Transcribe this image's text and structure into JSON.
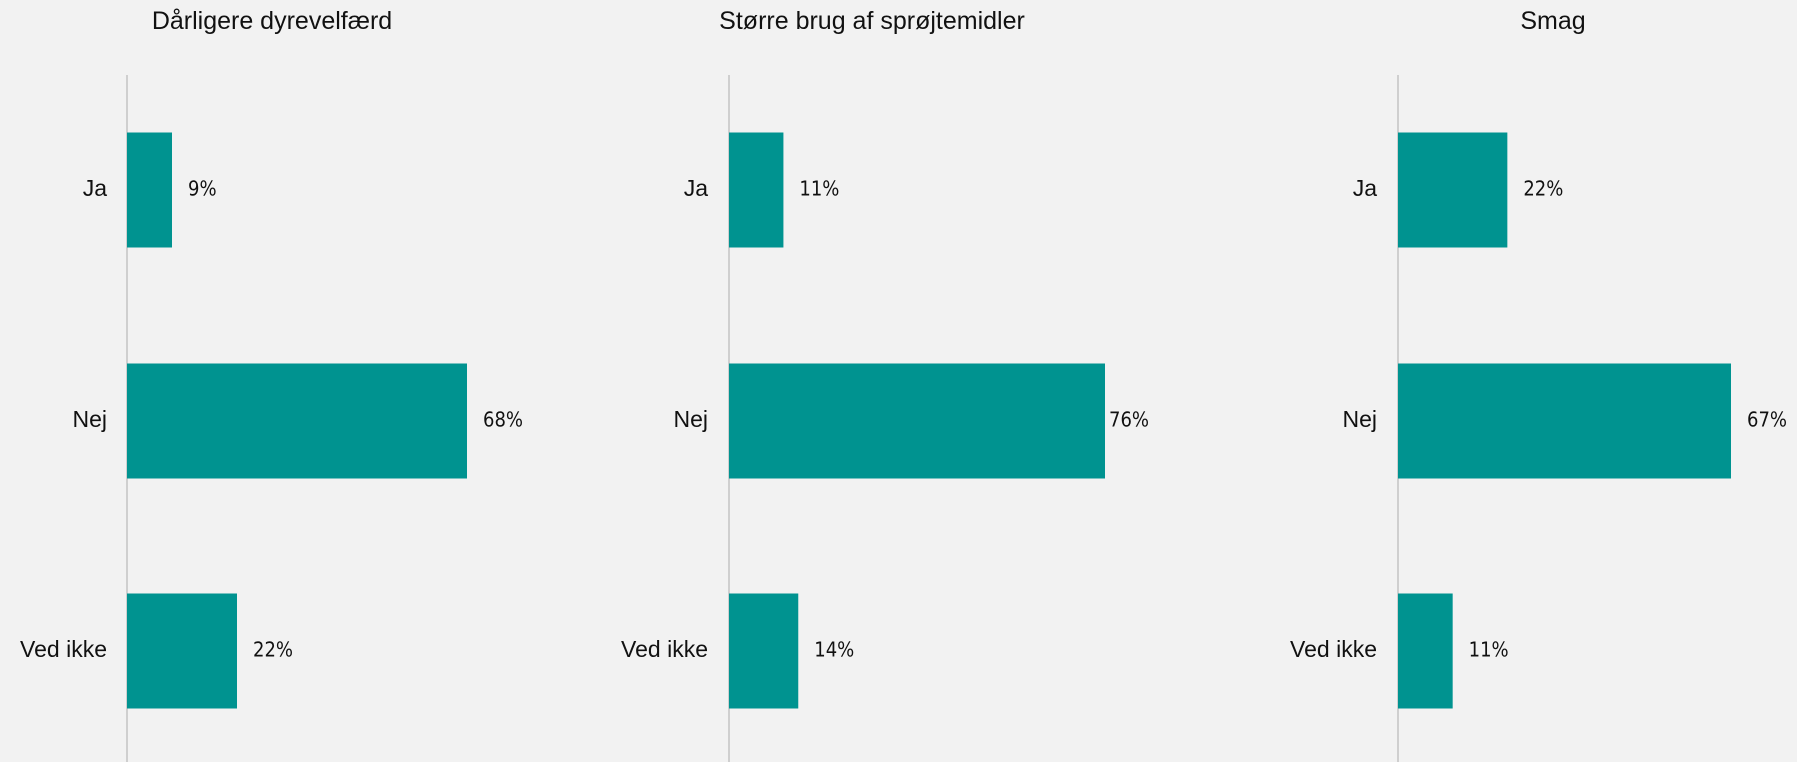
{
  "colors": {
    "background": "#f2f2f2",
    "bar": "#009390",
    "axis": "#cfcfcf",
    "text": "#111111"
  },
  "chart_data": [
    {
      "type": "bar",
      "orientation": "horizontal",
      "title": "Dårligere dyrevelfærd",
      "categories": [
        "Ja",
        "Nej",
        "Ved ikke"
      ],
      "values": [
        9,
        68,
        22
      ],
      "value_labels": [
        "9%",
        "68%",
        "22%"
      ],
      "unit": "%",
      "xlim": [
        0,
        100
      ],
      "grid": false,
      "legend": "none"
    },
    {
      "type": "bar",
      "orientation": "horizontal",
      "title": "Større brug af sprøjtemidler",
      "categories": [
        "Ja",
        "Nej",
        "Ved ikke"
      ],
      "values": [
        11,
        76,
        14
      ],
      "value_labels": [
        "11%",
        "76%",
        "14%"
      ],
      "unit": "%",
      "xlim": [
        0,
        100
      ],
      "grid": false,
      "legend": "none"
    },
    {
      "type": "bar",
      "orientation": "horizontal",
      "title": "Smag",
      "categories": [
        "Ja",
        "Nej",
        "Ved ikke"
      ],
      "values": [
        22,
        67,
        11
      ],
      "value_labels": [
        "22%",
        "67%",
        "11%"
      ],
      "unit": "%",
      "xlim": [
        0,
        100
      ],
      "grid": false,
      "legend": "none"
    }
  ]
}
